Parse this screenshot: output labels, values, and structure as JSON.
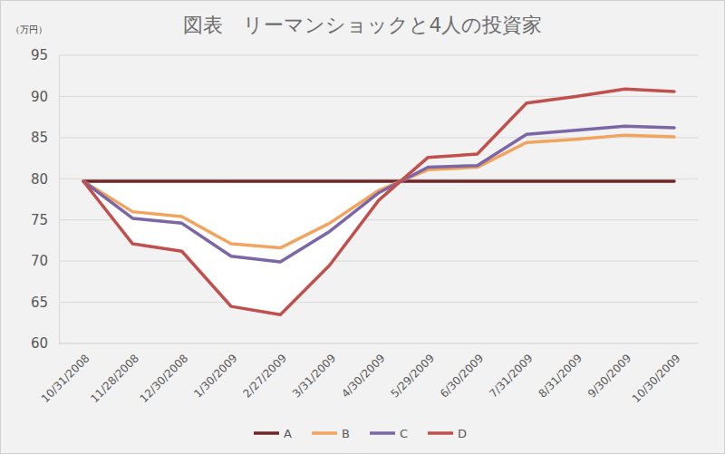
{
  "chart_data": {
    "type": "line",
    "title": "図表　リーマンショックと4人の投資家",
    "y_label": "（万円）",
    "categories": [
      "10/31/2008",
      "11/28/2008",
      "12/30/2008",
      "1/30/2009",
      "2/27/2009",
      "3/31/2009",
      "4/30/2009",
      "5/29/2009",
      "6/30/2009",
      "7/31/2009",
      "8/31/2009",
      "9/30/2009",
      "10/30/2009"
    ],
    "series": [
      {
        "name": "A",
        "color": "#6e2626",
        "values": [
          79.7,
          79.7,
          79.7,
          79.7,
          79.7,
          79.7,
          79.7,
          79.7,
          79.7,
          79.7,
          79.7,
          79.7,
          79.7
        ]
      },
      {
        "name": "B",
        "color": "#f2a35e",
        "values": [
          79.7,
          76.0,
          75.4,
          72.1,
          71.6,
          74.6,
          78.6,
          81.1,
          81.4,
          84.4,
          84.8,
          85.3,
          85.1
        ]
      },
      {
        "name": "C",
        "color": "#7b66a6",
        "values": [
          79.7,
          75.2,
          74.6,
          70.6,
          69.9,
          73.6,
          78.3,
          81.4,
          81.6,
          85.4,
          85.9,
          86.4,
          86.2
        ]
      },
      {
        "name": "D",
        "color": "#c0504d",
        "values": [
          79.7,
          72.1,
          71.2,
          64.5,
          63.5,
          69.5,
          77.4,
          82.6,
          83.0,
          89.2,
          90.0,
          90.9,
          90.6
        ]
      }
    ],
    "ylim": [
      60,
      95
    ],
    "yticks": [
      60,
      65,
      70,
      75,
      80,
      85,
      90,
      95
    ],
    "grid": true,
    "legend": "bottom"
  }
}
